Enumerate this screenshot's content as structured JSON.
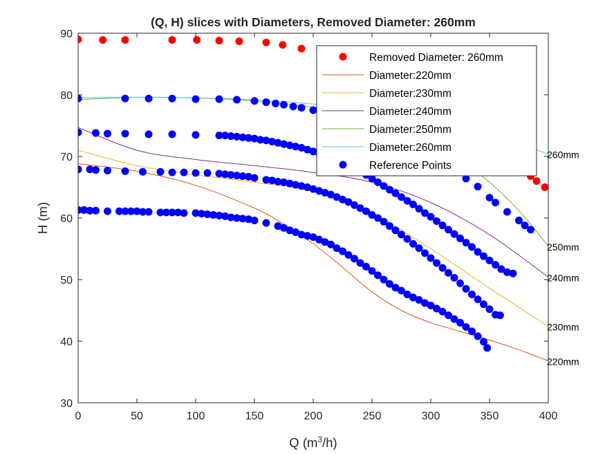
{
  "chart_data": {
    "type": "scatter",
    "title": "(Q, H) slices with Diameters, Removed Diameter: 260mm",
    "xlabel": "Q (m",
    "xlabel_sup": "3",
    "xlabel_end": "/h)",
    "ylabel": "H (m)",
    "xlim": [
      0,
      400
    ],
    "ylim": [
      30,
      90
    ],
    "xticks": [
      0,
      50,
      100,
      150,
      200,
      250,
      300,
      350,
      400
    ],
    "yticks": [
      30,
      40,
      50,
      60,
      70,
      80,
      90
    ],
    "grid": false,
    "legend_position": "top-right",
    "removed_points": {
      "name": "Removed Diameter: 260mm",
      "color": "#ff0000",
      "x": [
        0,
        21,
        40,
        80,
        101,
        120,
        137,
        160,
        174,
        190,
        210,
        230,
        250,
        270,
        290,
        310,
        330,
        350,
        365,
        375,
        381,
        385,
        390,
        397
      ],
      "y": [
        89.0,
        88.9,
        88.9,
        88.9,
        88.9,
        88.8,
        88.7,
        88.5,
        88.1,
        87.5,
        86.5,
        85.2,
        83.6,
        81.9,
        80.0,
        78.0,
        75.7,
        73.2,
        70.8,
        68.9,
        67.4,
        66.8,
        66.0,
        65.0
      ]
    },
    "series": [
      {
        "name": "Diameter:220mm",
        "end_label": "220mm",
        "color": "#d95319",
        "x": [
          0,
          50,
          100,
          150,
          175,
          200,
          225,
          250,
          275,
          300,
          325,
          350,
          375,
          400
        ],
        "y": [
          68.8,
          67.6,
          65.3,
          61.6,
          59.0,
          55.8,
          52.0,
          48.0,
          45.0,
          43.0,
          41.6,
          40.2,
          38.6,
          36.8
        ]
      },
      {
        "name": "Diameter:230mm",
        "end_label": "230mm",
        "color": "#edb120",
        "x": [
          0,
          50,
          100,
          150,
          200,
          250,
          300,
          350,
          400
        ],
        "y": [
          71.0,
          68.5,
          67.0,
          65.8,
          64.3,
          60.8,
          55.0,
          48.6,
          42.4
        ]
      },
      {
        "name": "Diameter:240mm",
        "end_label": "240mm",
        "color": "#7e2f8e",
        "x": [
          0,
          50,
          100,
          150,
          200,
          250,
          300,
          350,
          400
        ],
        "y": [
          74.7,
          71.0,
          69.5,
          68.5,
          67.4,
          65.8,
          62.5,
          57.3,
          50.4
        ]
      },
      {
        "name": "Diameter:250mm",
        "end_label": "250mm",
        "color": "#77ac30",
        "x": [
          0,
          50,
          100,
          150,
          200,
          250,
          300,
          330,
          350,
          370,
          385,
          400
        ],
        "y": [
          79.2,
          79.6,
          79.5,
          79.0,
          78.0,
          76.1,
          72.4,
          68.7,
          65.8,
          62.2,
          59.0,
          55.4
        ]
      },
      {
        "name": "Diameter:260mm",
        "end_label": "260mm",
        "color": "#4dbeee",
        "x": [
          0,
          50,
          100,
          150,
          200,
          250,
          300,
          350,
          400
        ],
        "y": [
          79.5,
          79.6,
          79.5,
          79.2,
          78.5,
          77.4,
          75.8,
          73.5,
          70.4
        ]
      }
    ],
    "reference_points": {
      "name": "Reference Points",
      "color": "#0000ff",
      "curves": [
        {
          "x": [
            0,
            5,
            10,
            15,
            25,
            35,
            40,
            45,
            50,
            55,
            60,
            70,
            75,
            80,
            85,
            90,
            100,
            105,
            110,
            115,
            120,
            125,
            130,
            135,
            140,
            145,
            150,
            160,
            170,
            175,
            180,
            185,
            190,
            195,
            200,
            205,
            210,
            215,
            220,
            225,
            230,
            235,
            240,
            245,
            250,
            255,
            260,
            265,
            270,
            275,
            280,
            285,
            290,
            295,
            300,
            305,
            310,
            315,
            320,
            325,
            330,
            335,
            340,
            345,
            348
          ],
          "y": [
            61.3,
            61.3,
            61.2,
            61.2,
            61.1,
            61.1,
            61.1,
            61.1,
            61.1,
            61.0,
            61.0,
            60.9,
            60.9,
            60.9,
            60.9,
            60.8,
            60.8,
            60.7,
            60.6,
            60.5,
            60.4,
            60.3,
            60.1,
            60.0,
            59.9,
            59.8,
            59.6,
            59.2,
            58.7,
            58.4,
            58.0,
            57.7,
            57.3,
            57.1,
            56.9,
            56.5,
            56.1,
            55.7,
            55.1,
            54.6,
            54.0,
            53.4,
            52.7,
            52.1,
            51.4,
            50.7,
            50.0,
            49.3,
            48.7,
            48.2,
            47.6,
            47.1,
            46.7,
            46.2,
            45.8,
            45.3,
            44.8,
            44.2,
            43.6,
            43.0,
            42.3,
            41.6,
            40.8,
            39.9,
            38.9
          ]
        },
        {
          "x": [
            0,
            10,
            15,
            25,
            40,
            55,
            70,
            80,
            90,
            100,
            110,
            120,
            125,
            130,
            135,
            140,
            145,
            150,
            160,
            165,
            170,
            175,
            180,
            185,
            190,
            195,
            200,
            205,
            210,
            215,
            220,
            225,
            230,
            235,
            240,
            245,
            250,
            255,
            260,
            265,
            270,
            275,
            280,
            285,
            290,
            295,
            300,
            305,
            310,
            315,
            320,
            325,
            330,
            335,
            340,
            345,
            350,
            355,
            359
          ],
          "y": [
            67.9,
            67.9,
            67.8,
            67.7,
            67.6,
            67.5,
            67.5,
            67.4,
            67.4,
            67.3,
            67.3,
            67.2,
            67.1,
            67.0,
            66.9,
            66.8,
            66.7,
            66.5,
            66.2,
            66.1,
            65.9,
            65.8,
            65.6,
            65.4,
            65.2,
            65.0,
            64.7,
            64.4,
            64.1,
            63.8,
            63.4,
            63.0,
            62.6,
            62.1,
            61.6,
            61.1,
            60.5,
            60.0,
            59.4,
            58.7,
            58.0,
            57.3,
            56.6,
            55.8,
            55.1,
            54.3,
            53.5,
            52.7,
            51.9,
            51.1,
            50.3,
            49.4,
            48.5,
            47.6,
            46.8,
            46.0,
            45.2,
            44.3,
            44.2
          ]
        },
        {
          "x": [
            0,
            15,
            25,
            40,
            60,
            80,
            100,
            120,
            125,
            130,
            135,
            140,
            145,
            150,
            155,
            160,
            165,
            170,
            175,
            180,
            185,
            190,
            195,
            200,
            205,
            210,
            215,
            220,
            225,
            230,
            235,
            240,
            245,
            250,
            255,
            260,
            265,
            270,
            275,
            280,
            285,
            290,
            295,
            300,
            305,
            310,
            315,
            320,
            325,
            330,
            335,
            340,
            345,
            350,
            355,
            360,
            365,
            370
          ],
          "y": [
            73.9,
            73.8,
            73.7,
            73.7,
            73.6,
            73.6,
            73.5,
            73.4,
            73.4,
            73.3,
            73.2,
            73.1,
            73.0,
            72.9,
            72.7,
            72.6,
            72.4,
            72.2,
            72.0,
            71.8,
            71.6,
            71.4,
            71.1,
            70.8,
            70.5,
            70.2,
            69.9,
            69.5,
            69.1,
            68.6,
            68.1,
            67.6,
            67.0,
            66.4,
            65.8,
            65.2,
            64.6,
            64.0,
            63.4,
            62.8,
            62.2,
            61.5,
            60.8,
            60.2,
            59.5,
            58.8,
            58.1,
            57.4,
            56.7,
            56.0,
            55.3,
            54.5,
            53.8,
            53.1,
            52.4,
            51.7,
            51.2,
            51.0
          ]
        },
        {
          "x": [
            0,
            40,
            60,
            80,
            100,
            120,
            135,
            150,
            160,
            168,
            175,
            183,
            190,
            200,
            210,
            220,
            230,
            240,
            250,
            260,
            270,
            280,
            290,
            300,
            310,
            320,
            330,
            340,
            350,
            355,
            365,
            375,
            380,
            385
          ],
          "y": [
            79.4,
            79.4,
            79.4,
            79.4,
            79.3,
            79.3,
            79.2,
            79.0,
            78.8,
            78.6,
            78.4,
            78.1,
            77.9,
            77.5,
            77.1,
            76.6,
            76.0,
            75.3,
            74.6,
            73.8,
            72.9,
            72.0,
            71.0,
            69.9,
            68.8,
            67.6,
            66.4,
            65.1,
            63.3,
            62.5,
            61.0,
            59.6,
            58.8,
            58.1
          ]
        }
      ]
    }
  }
}
